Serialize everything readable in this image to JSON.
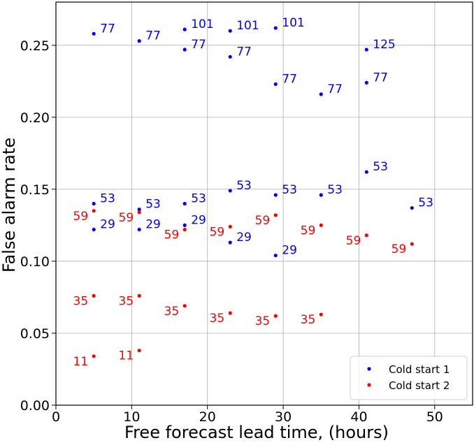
{
  "chart_data": {
    "type": "scatter",
    "xlabel": "Free forecast lead time, (hours)",
    "ylabel": "False alarm rate",
    "xlim": [
      0,
      55
    ],
    "ylim": [
      0.0,
      0.28
    ],
    "x_ticks": [
      0,
      10,
      20,
      30,
      40,
      50
    ],
    "y_ticks": [
      0.0,
      0.05,
      0.1,
      0.15,
      0.2,
      0.25
    ],
    "x_tick_labels": [
      "0",
      "10",
      "20",
      "30",
      "40",
      "50"
    ],
    "y_tick_labels": [
      "0.00",
      "0.05",
      "0.10",
      "0.15",
      "0.20",
      "0.25"
    ],
    "grid": true,
    "legend_position": "bottom-right",
    "series": [
      {
        "name": "Cold start 1",
        "color": "#0000ff",
        "label_side": "right",
        "points": [
          {
            "x": 5,
            "y": 0.258,
            "label": "77"
          },
          {
            "x": 5,
            "y": 0.14,
            "label": "53"
          },
          {
            "x": 5,
            "y": 0.122,
            "label": "29"
          },
          {
            "x": 11,
            "y": 0.253,
            "label": "77"
          },
          {
            "x": 11,
            "y": 0.136,
            "label": "53"
          },
          {
            "x": 11,
            "y": 0.122,
            "label": "29"
          },
          {
            "x": 17,
            "y": 0.261,
            "label": "101"
          },
          {
            "x": 17,
            "y": 0.247,
            "label": "77"
          },
          {
            "x": 17,
            "y": 0.14,
            "label": "53"
          },
          {
            "x": 17,
            "y": 0.125,
            "label": "29"
          },
          {
            "x": 23,
            "y": 0.26,
            "label": "101"
          },
          {
            "x": 23,
            "y": 0.242,
            "label": "77"
          },
          {
            "x": 23,
            "y": 0.149,
            "label": "53"
          },
          {
            "x": 23,
            "y": 0.113,
            "label": "29"
          },
          {
            "x": 29,
            "y": 0.262,
            "label": "101"
          },
          {
            "x": 29,
            "y": 0.223,
            "label": "77"
          },
          {
            "x": 29,
            "y": 0.146,
            "label": "53"
          },
          {
            "x": 29,
            "y": 0.104,
            "label": "29"
          },
          {
            "x": 35,
            "y": 0.216,
            "label": "77"
          },
          {
            "x": 35,
            "y": 0.146,
            "label": "53"
          },
          {
            "x": 41,
            "y": 0.247,
            "label": "125"
          },
          {
            "x": 41,
            "y": 0.224,
            "label": "77"
          },
          {
            "x": 41,
            "y": 0.162,
            "label": "53"
          },
          {
            "x": 47,
            "y": 0.137,
            "label": "53"
          }
        ]
      },
      {
        "name": "Cold start 2",
        "color": "#ff0000",
        "label_side": "left",
        "points": [
          {
            "x": 5,
            "y": 0.135,
            "label": "59"
          },
          {
            "x": 5,
            "y": 0.076,
            "label": "35"
          },
          {
            "x": 5,
            "y": 0.034,
            "label": "11"
          },
          {
            "x": 11,
            "y": 0.134,
            "label": "59"
          },
          {
            "x": 11,
            "y": 0.076,
            "label": "35"
          },
          {
            "x": 11,
            "y": 0.038,
            "label": "11"
          },
          {
            "x": 17,
            "y": 0.122,
            "label": "59"
          },
          {
            "x": 17,
            "y": 0.069,
            "label": "35"
          },
          {
            "x": 23,
            "y": 0.124,
            "label": "59"
          },
          {
            "x": 23,
            "y": 0.064,
            "label": "35"
          },
          {
            "x": 29,
            "y": 0.132,
            "label": "59"
          },
          {
            "x": 29,
            "y": 0.062,
            "label": "35"
          },
          {
            "x": 35,
            "y": 0.125,
            "label": "59"
          },
          {
            "x": 35,
            "y": 0.063,
            "label": "35"
          },
          {
            "x": 41,
            "y": 0.118,
            "label": "59"
          },
          {
            "x": 47,
            "y": 0.112,
            "label": "59"
          }
        ]
      }
    ]
  }
}
